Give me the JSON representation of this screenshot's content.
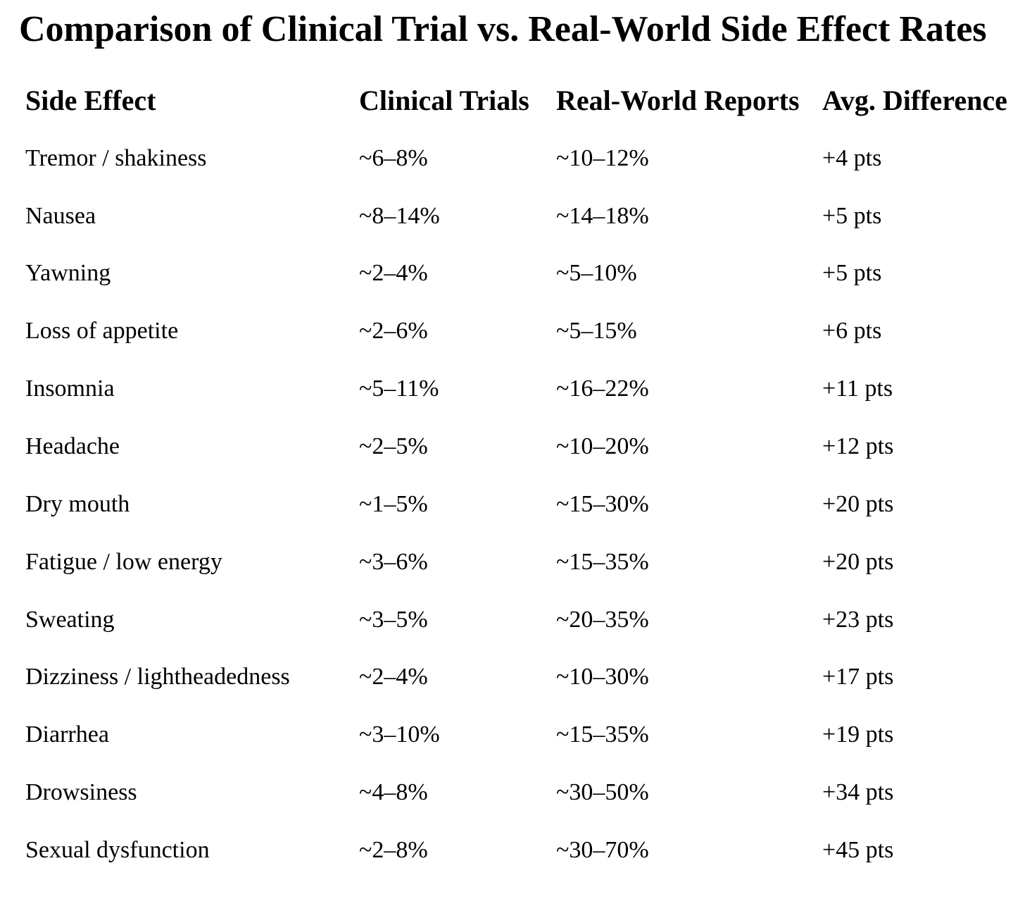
{
  "title": "Comparison of Clinical Trial vs. Real-World Side Effect Rates",
  "colors": {
    "background": "#ffffff",
    "text": "#000000"
  },
  "table": {
    "columns": [
      "Side Effect",
      "Clinical Trials",
      "Real-World Reports",
      "Avg. Difference"
    ],
    "rows": [
      {
        "side_effect": "Tremor / shakiness",
        "clinical_trials": "~6–8%",
        "real_world": "~10–12%",
        "avg_difference": "+4 pts"
      },
      {
        "side_effect": "Nausea",
        "clinical_trials": "~8–14%",
        "real_world": "~14–18%",
        "avg_difference": "+5 pts"
      },
      {
        "side_effect": "Yawning",
        "clinical_trials": "~2–4%",
        "real_world": "~5–10%",
        "avg_difference": "+5 pts"
      },
      {
        "side_effect": "Loss of appetite",
        "clinical_trials": "~2–6%",
        "real_world": "~5–15%",
        "avg_difference": "+6 pts"
      },
      {
        "side_effect": "Insomnia",
        "clinical_trials": "~5–11%",
        "real_world": "~16–22%",
        "avg_difference": "+11 pts"
      },
      {
        "side_effect": "Headache",
        "clinical_trials": "~2–5%",
        "real_world": "~10–20%",
        "avg_difference": "+12 pts"
      },
      {
        "side_effect": "Dry mouth",
        "clinical_trials": "~1–5%",
        "real_world": "~15–30%",
        "avg_difference": "+20 pts"
      },
      {
        "side_effect": "Fatigue / low energy",
        "clinical_trials": "~3–6%",
        "real_world": "~15–35%",
        "avg_difference": "+20 pts"
      },
      {
        "side_effect": "Sweating",
        "clinical_trials": "~3–5%",
        "real_world": "~20–35%",
        "avg_difference": "+23 pts"
      },
      {
        "side_effect": "Dizziness / lightheadedness",
        "clinical_trials": "~2–4%",
        "real_world": "~10–30%",
        "avg_difference": "+17 pts"
      },
      {
        "side_effect": "Diarrhea",
        "clinical_trials": "~3–10%",
        "real_world": "~15–35%",
        "avg_difference": "+19 pts"
      },
      {
        "side_effect": "Drowsiness",
        "clinical_trials": "~4–8%",
        "real_world": "~30–50%",
        "avg_difference": "+34 pts"
      },
      {
        "side_effect": "Sexual dysfunction",
        "clinical_trials": "~2–8%",
        "real_world": "~30–70%",
        "avg_difference": "+45 pts"
      }
    ]
  }
}
